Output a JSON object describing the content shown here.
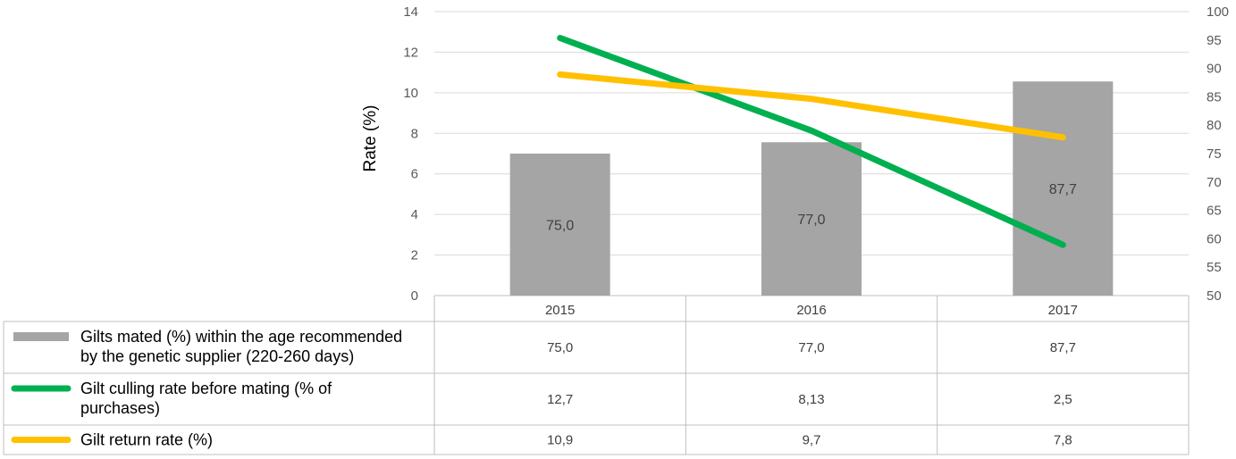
{
  "chart_data": {
    "type": "bar",
    "categories": [
      "2015",
      "2016",
      "2017"
    ],
    "ylabel": "Rate (%)",
    "ylim": [
      0,
      14
    ],
    "y_ticks": [
      "0",
      "2",
      "4",
      "6",
      "8",
      "10",
      "12",
      "14"
    ],
    "y2lim": [
      50,
      100
    ],
    "y2_ticks": [
      "50",
      "55",
      "60",
      "65",
      "70",
      "75",
      "80",
      "85",
      "90",
      "95",
      "100"
    ],
    "grid": true,
    "legend_placement": "data-table-left",
    "series": [
      {
        "name": "Gilts mated (%) within the age recommended by the genetic supplier (220-260 days)",
        "name_lines": [
          "Gilts mated (%) within the age recommended",
          "by the genetic supplier (220-260 days)"
        ],
        "type": "bar",
        "axis": "right",
        "color": "#a5a5a5",
        "values": [
          75.0,
          77.0,
          87.7
        ],
        "labels": [
          "75,0",
          "77,0",
          "87,7"
        ]
      },
      {
        "name": "Gilt culling rate before mating (% of purchases)",
        "name_lines": [
          "Gilt culling rate before mating (% of",
          "purchases)"
        ],
        "type": "line",
        "axis": "left",
        "color": "#00b050",
        "values": [
          12.7,
          8.13,
          2.5
        ],
        "labels": [
          "12,7",
          "8,13",
          "2,5"
        ]
      },
      {
        "name": "Gilt return rate (%)",
        "name_lines": [
          "Gilt return rate (%)"
        ],
        "type": "line",
        "axis": "left",
        "color": "#ffc000",
        "values": [
          10.9,
          9.7,
          7.8
        ],
        "labels": [
          "10,9",
          "9,7",
          "7,8"
        ]
      }
    ]
  }
}
